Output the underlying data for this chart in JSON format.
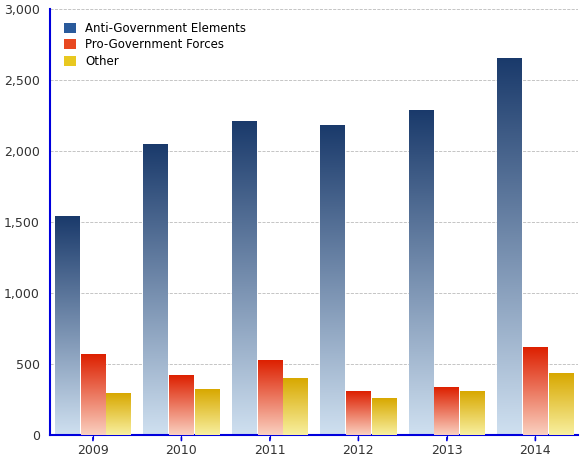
{
  "years": [
    "2009",
    "2010",
    "2011",
    "2012",
    "2013",
    "2014"
  ],
  "anti_gov": [
    1540,
    2047,
    2208,
    2179,
    2284,
    2656
  ],
  "pro_gov": [
    565,
    420,
    525,
    305,
    335,
    620
  ],
  "other": [
    295,
    320,
    395,
    255,
    305,
    430
  ],
  "ylim_min": 0,
  "ylim_max": 3000,
  "yticks": [
    0,
    500,
    1000,
    1500,
    2000,
    2500,
    3000
  ],
  "ytick_labels": [
    "0",
    "500",
    "1,000",
    "1,500",
    "2,000",
    "2,500",
    "3,000"
  ],
  "legend_labels": [
    "Anti-Government Elements",
    "Pro-Government Forces",
    "Other"
  ],
  "anti_gov_top_color": "#1a3a6b",
  "anti_gov_bottom_color": "#cfe0f0",
  "pro_gov_top_color": "#dd2000",
  "pro_gov_bottom_color": "#fad0c0",
  "other_top_color": "#d8a800",
  "other_bottom_color": "#f8f0a0",
  "legend_anti_color": "#2a5a9b",
  "legend_pro_color": "#e84820",
  "legend_other_color": "#e8c820",
  "bar_width": 0.28,
  "bar_gap": 0.01,
  "group_width": 0.9,
  "bg_color": "#ffffff",
  "grid_color": "#bbbbbb",
  "axis_color": "#0000dd",
  "left_spine_color": "#0000dd",
  "bottom_spine_color": "#0000dd"
}
